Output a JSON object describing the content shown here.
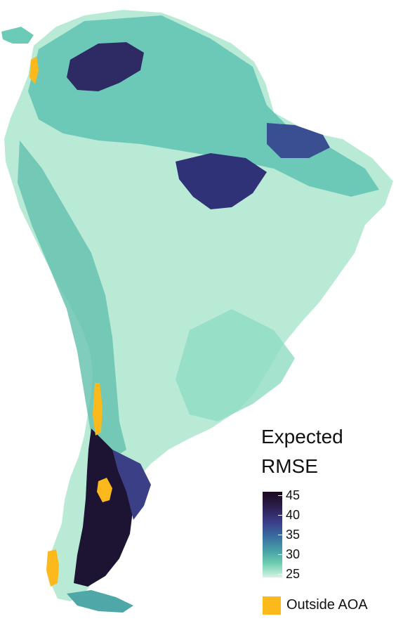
{
  "legend": {
    "title_line1": "Expected",
    "title_line2": "RMSE",
    "ticks": [
      "45",
      "40",
      "35",
      "30",
      "25"
    ],
    "outside_label": "Outside AOA"
  },
  "colors": {
    "low": "#d6f3e5",
    "mid": "#4aa3a7",
    "high": "#2c1f4f",
    "max": "#1a0a1f",
    "outside_aoa": "#fcb91b"
  }
}
